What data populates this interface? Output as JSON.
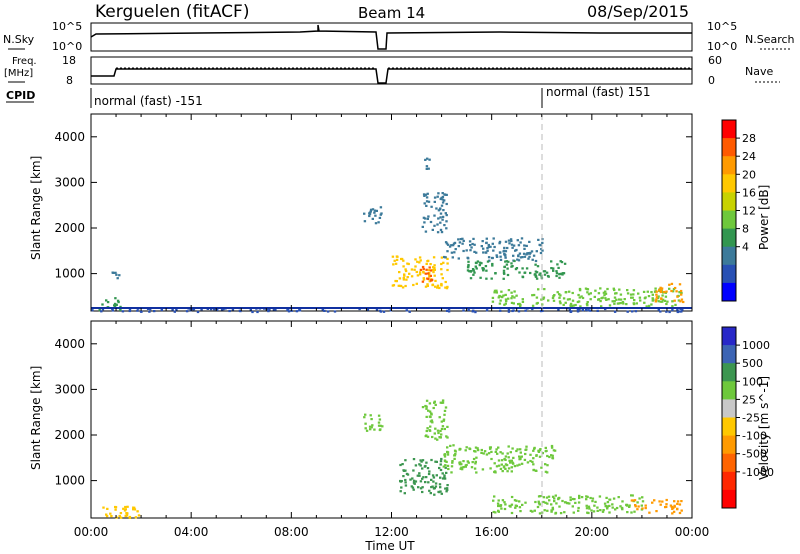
{
  "header": {
    "station": "Kerguelen (fitACF)",
    "beam": "Beam 14",
    "date": "08/Sep/2015"
  },
  "noise_panel": {
    "left_label": "N.Sky",
    "right_label": "N.Search",
    "left_ticks": [
      "10^5",
      "10^0"
    ],
    "right_ticks": [
      "10^5",
      "10^0"
    ]
  },
  "freq_panel": {
    "left_label_1": "Freq.",
    "left_label_2": "[MHz]",
    "left_ticks": [
      "18",
      "8"
    ],
    "right_label": "Nave",
    "right_ticks": [
      "60",
      "0"
    ]
  },
  "cpid": {
    "label": "CPID",
    "mode_1": "normal (fast) -151",
    "mode_2": "normal (fast) 151"
  },
  "power_colorbar": {
    "label": "Power [dB]",
    "ticks": [
      "28",
      "24",
      "20",
      "16",
      "12",
      "8",
      "4"
    ],
    "colors": [
      "#ff0000",
      "#ff5a00",
      "#ff9a00",
      "#ffc800",
      "#c8d200",
      "#6ec83c",
      "#329650",
      "#3c7a9a",
      "#2850b4",
      "#0000ff"
    ]
  },
  "velocity_colorbar": {
    "label": "Velocity [m s^-1]",
    "ticks": [
      "1000",
      "500",
      "100",
      "25",
      "-25",
      "-100",
      "-500",
      "-1000"
    ],
    "colors": [
      "#2828c8",
      "#3c64b4",
      "#3c9650",
      "#6ec83c",
      "#c8c8c8",
      "#ffc800",
      "#ff9a00",
      "#ff6400",
      "#ff2800",
      "#ff0000"
    ]
  },
  "chart_data": [
    {
      "type": "heatmap",
      "panel": "power",
      "ylabel": "Slant Range [km]",
      "xlabel": "",
      "ylim": [
        180,
        4500
      ],
      "yticks": [
        1000,
        2000,
        3000,
        4000
      ],
      "xlim_hours": [
        0,
        24
      ],
      "x_tick_labels": [
        "00:00",
        "04:00",
        "08:00",
        "12:00",
        "16:00",
        "20:00",
        "00:00"
      ],
      "regions": [
        {
          "t": [
            0.3,
            1.2
          ],
          "r": [
            200,
            500
          ],
          "value": 12
        },
        {
          "t": [
            0.8,
            1.1
          ],
          "r": [
            900,
            1100
          ],
          "value": 8
        },
        {
          "t": [
            10.8,
            11.6
          ],
          "r": [
            2100,
            2500
          ],
          "value": 8
        },
        {
          "t": [
            12.0,
            14.2
          ],
          "r": [
            700,
            1400
          ],
          "value": 20
        },
        {
          "t": [
            13.0,
            13.6
          ],
          "r": [
            800,
            1200
          ],
          "value": 28
        },
        {
          "t": [
            13.3,
            13.5
          ],
          "r": [
            3300,
            3550
          ],
          "value": 8
        },
        {
          "t": [
            13.2,
            14.2
          ],
          "r": [
            1900,
            2800
          ],
          "value": 8
        },
        {
          "t": [
            14.0,
            18.0
          ],
          "r": [
            1300,
            1800
          ],
          "value": 8
        },
        {
          "t": [
            15.0,
            19.0
          ],
          "r": [
            900,
            1300
          ],
          "value": 12
        },
        {
          "t": [
            16.0,
            23.6
          ],
          "r": [
            300,
            700
          ],
          "value": 16
        },
        {
          "t": [
            22.5,
            23.6
          ],
          "r": [
            400,
            800
          ],
          "value": 24
        },
        {
          "t": [
            0.0,
            24.0
          ],
          "r": [
            180,
            260
          ],
          "value": 4
        }
      ]
    },
    {
      "type": "heatmap",
      "panel": "velocity",
      "ylabel": "Slant Range [km]",
      "xlabel": "Time UT",
      "ylim": [
        180,
        4500
      ],
      "yticks": [
        1000,
        2000,
        3000,
        4000
      ],
      "xlim_hours": [
        0,
        24
      ],
      "x_tick_labels": [
        "00:00",
        "04:00",
        "08:00",
        "12:00",
        "16:00",
        "20:00",
        "00:00"
      ],
      "regions": [
        {
          "t": [
            0.3,
            2.0
          ],
          "r": [
            200,
            500
          ],
          "value": -100
        },
        {
          "t": [
            10.8,
            11.6
          ],
          "r": [
            2100,
            2500
          ],
          "value": 25
        },
        {
          "t": [
            12.3,
            14.2
          ],
          "r": [
            700,
            1500
          ],
          "value": 100
        },
        {
          "t": [
            13.2,
            14.2
          ],
          "r": [
            1900,
            2800
          ],
          "value": 25
        },
        {
          "t": [
            14.0,
            18.5
          ],
          "r": [
            1200,
            1800
          ],
          "value": 25
        },
        {
          "t": [
            16.0,
            22.0
          ],
          "r": [
            300,
            700
          ],
          "value": 25
        },
        {
          "t": [
            21.5,
            23.6
          ],
          "r": [
            300,
            600
          ],
          "value": -500
        }
      ]
    }
  ]
}
